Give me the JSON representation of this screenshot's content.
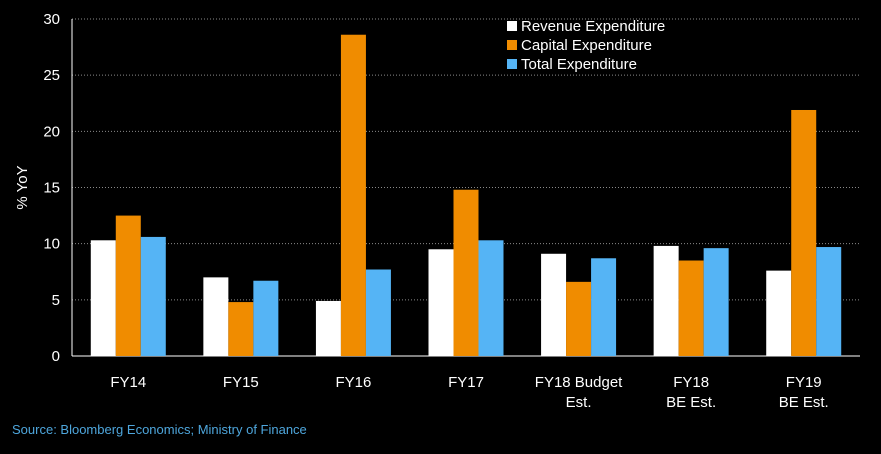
{
  "chart_data": {
    "type": "bar",
    "ylabel": "% YoY",
    "ylim": [
      0,
      30
    ],
    "yticks": [
      0,
      5,
      10,
      15,
      20,
      25,
      30
    ],
    "grid": true,
    "legend_position": "top-right",
    "categories": [
      [
        "FY14"
      ],
      [
        "FY15"
      ],
      [
        "FY16"
      ],
      [
        "FY17"
      ],
      [
        "FY18 Budget",
        "Est."
      ],
      [
        "FY18",
        "BE Est."
      ],
      [
        "FY19",
        "BE Est."
      ]
    ],
    "series": [
      {
        "name": "Revenue Expenditure",
        "color": "#ffffff",
        "values": [
          10.3,
          7.0,
          4.9,
          9.5,
          9.1,
          9.8,
          7.6
        ]
      },
      {
        "name": "Capital Expenditure",
        "color": "#f08c00",
        "values": [
          12.5,
          4.8,
          28.6,
          14.8,
          6.6,
          8.5,
          21.9
        ]
      },
      {
        "name": "Total Expenditure",
        "color": "#55b4f5",
        "values": [
          10.6,
          6.7,
          7.7,
          10.3,
          8.7,
          9.6,
          9.7
        ]
      }
    ]
  },
  "source": "Source: Bloomberg Economics; Ministry of Finance"
}
